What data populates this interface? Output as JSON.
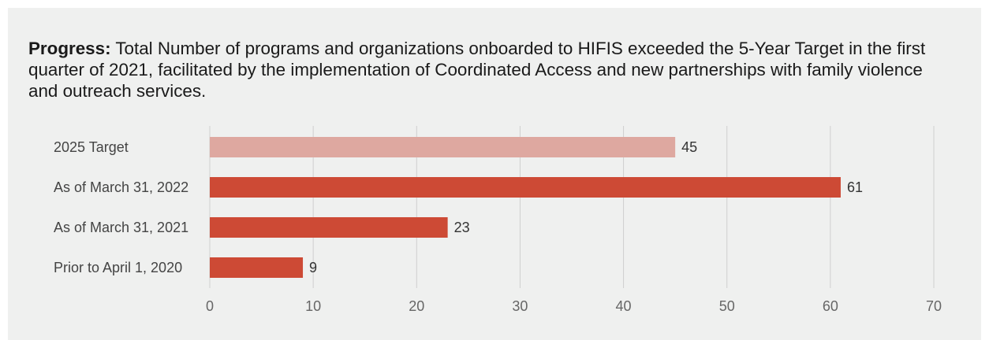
{
  "heading": {
    "lead": "Progress:",
    "text": " Total Number of programs and organizations onboarded to HIFIS exceeded the 5-Year Target in the first quarter of 2021, facilitated by the implementation of Coordinated Access and new partnerships with family violence and outreach services."
  },
  "chart_data": {
    "type": "bar",
    "orientation": "horizontal",
    "categories": [
      "2025 Target",
      "As of March 31, 2022",
      "As of March 31, 2021",
      "Prior to April 1, 2020"
    ],
    "values": [
      45,
      61,
      23,
      9
    ],
    "value_labels": [
      "45",
      "61",
      "23",
      "9"
    ],
    "bar_colors": [
      "#dea8a0",
      "#cd4a35",
      "#cd4a35",
      "#cd4a35"
    ],
    "xlim": [
      0,
      70
    ],
    "xticks": [
      0,
      10,
      20,
      30,
      40,
      50,
      60,
      70
    ],
    "grid": true,
    "legend": false
  }
}
